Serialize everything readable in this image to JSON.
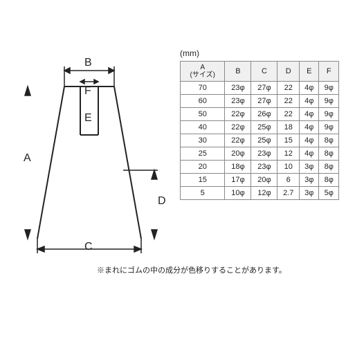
{
  "unit": "(mm)",
  "note": "※まれにゴムの中の成分が色移りすることがあります。",
  "diagram": {
    "labels": {
      "A": "A",
      "B": "B",
      "C": "C",
      "D": "D",
      "E": "E",
      "F": "F"
    },
    "stroke_color": "#222222",
    "stroke_width": 2,
    "shape": {
      "top_width_B": 72,
      "top_inner_F": 26,
      "bottom_width_C": 150,
      "height_A": 220,
      "inner_height_E": 70,
      "side_height_D": 90
    }
  },
  "table": {
    "columns": [
      "A\n(サイズ)",
      "B",
      "C",
      "D",
      "E",
      "F"
    ],
    "rows": [
      [
        "70",
        "23φ",
        "27φ",
        "22",
        "4φ",
        "9φ"
      ],
      [
        "60",
        "23φ",
        "27φ",
        "22",
        "4φ",
        "9φ"
      ],
      [
        "50",
        "22φ",
        "26φ",
        "22",
        "4φ",
        "9φ"
      ],
      [
        "40",
        "22φ",
        "25φ",
        "18",
        "4φ",
        "9φ"
      ],
      [
        "30",
        "22φ",
        "25φ",
        "15",
        "4φ",
        "8φ"
      ],
      [
        "25",
        "20φ",
        "23φ",
        "12",
        "4φ",
        "8φ"
      ],
      [
        "20",
        "18φ",
        "23φ",
        "10",
        "3φ",
        "8φ"
      ],
      [
        "15",
        "17φ",
        "20φ",
        "6",
        "3φ",
        "8φ"
      ],
      [
        "5",
        "10φ",
        "12φ",
        "2.7",
        "3φ",
        "5φ"
      ]
    ],
    "header_bg": "#f0f0f0",
    "border_color": "#888888",
    "font_size": 11
  }
}
